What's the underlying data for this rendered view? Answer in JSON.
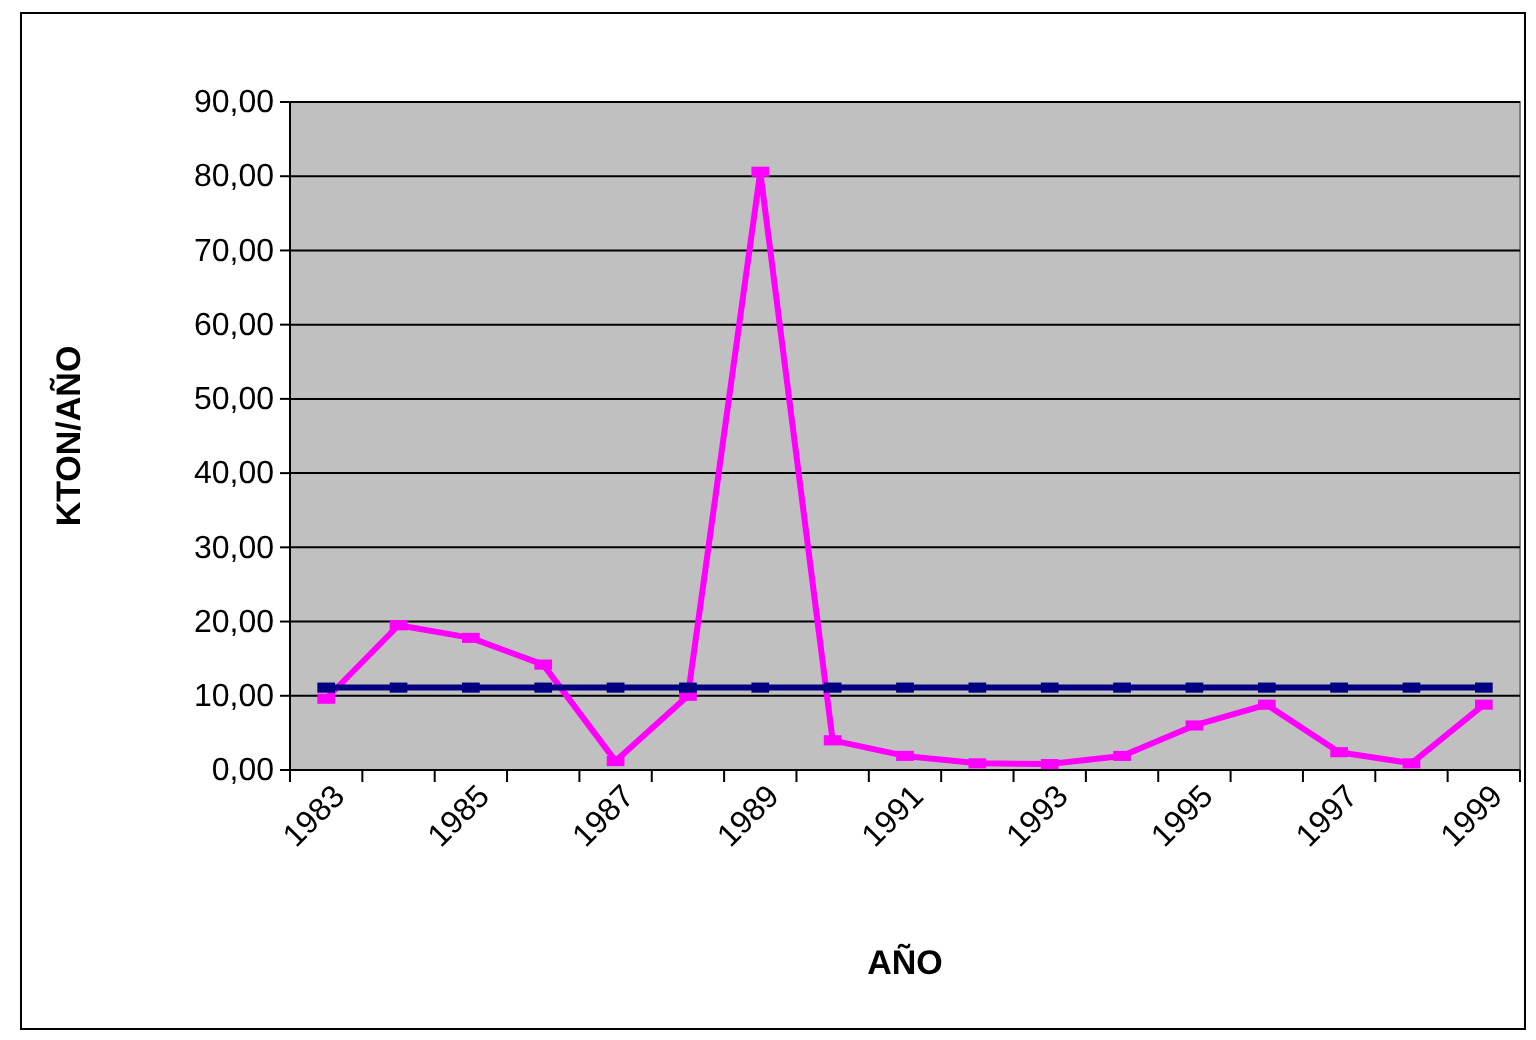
{
  "chart_data": {
    "type": "line",
    "xlabel": "AÑO",
    "ylabel": "KTON/AÑO",
    "categories": [
      "1983",
      null,
      "1985",
      null,
      "1987",
      null,
      "1989",
      null,
      "1991",
      null,
      "1993",
      null,
      "1995",
      null,
      "1997",
      null,
      "1999"
    ],
    "series": [
      {
        "color": "#ff00ff",
        "values": [
          9.6,
          19.5,
          17.8,
          14.2,
          1.2,
          10.0,
          80.6,
          4.0,
          1.9,
          0.9,
          0.8,
          1.9,
          6.0,
          8.8,
          2.4,
          0.9,
          8.8
        ]
      },
      {
        "color": "#000080",
        "values": [
          11.1,
          11.1,
          11.1,
          11.1,
          11.1,
          11.1,
          11.1,
          11.1,
          11.1,
          11.1,
          11.1,
          11.1,
          11.1,
          11.1,
          11.1,
          11.1,
          11.1
        ]
      }
    ],
    "ylim": [
      0,
      90
    ],
    "yticks": [
      {
        "value": 0,
        "label": "0,00"
      },
      {
        "value": 10,
        "label": "10,00"
      },
      {
        "value": 20,
        "label": "20,00"
      },
      {
        "value": 30,
        "label": "30,00"
      },
      {
        "value": 40,
        "label": "40,00"
      },
      {
        "value": 50,
        "label": "50,00"
      },
      {
        "value": 60,
        "label": "60,00"
      },
      {
        "value": 70,
        "label": "70,00"
      },
      {
        "value": 80,
        "label": "80,00"
      },
      {
        "value": 90,
        "label": "90,00"
      }
    ],
    "grid": "y",
    "marker": "square",
    "line_style": "solid"
  }
}
